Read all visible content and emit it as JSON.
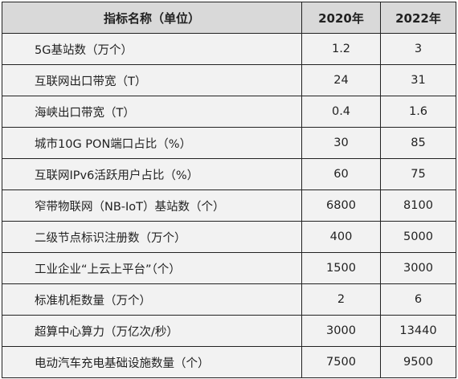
{
  "table": {
    "headers": {
      "name": "指标名称（单位）",
      "y2020": "2020年",
      "y2022": "2022年"
    },
    "rows": [
      {
        "name": "5G基站数（万个）",
        "v2020": "1.2",
        "v2022": "3"
      },
      {
        "name": "互联网出口带宽（T）",
        "v2020": "24",
        "v2022": "31"
      },
      {
        "name": "海峡出口带宽（T）",
        "v2020": "0.4",
        "v2022": "1.6"
      },
      {
        "name": "城市10G PON端口占比（%）",
        "v2020": "30",
        "v2022": "85"
      },
      {
        "name": "互联网IPv6活跃用户占比（%）",
        "v2020": "60",
        "v2022": "75"
      },
      {
        "name": "窄带物联网（NB-IoT）基站数（个）",
        "v2020": "6800",
        "v2022": "8100"
      },
      {
        "name": "二级节点标识注册数（万个）",
        "v2020": "400",
        "v2022": "5000"
      },
      {
        "name": "工业企业“上云上平台”（个）",
        "v2020": "1500",
        "v2022": "3000"
      },
      {
        "name": "标准机柜数量（万个）",
        "v2020": "2",
        "v2022": "6"
      },
      {
        "name": "超算中心算力（万亿次/秒）",
        "v2020": "3000",
        "v2022": "13440"
      },
      {
        "name": "电动汽车充电基础设施数量（个）",
        "v2020": "7500",
        "v2022": "9500"
      }
    ]
  }
}
